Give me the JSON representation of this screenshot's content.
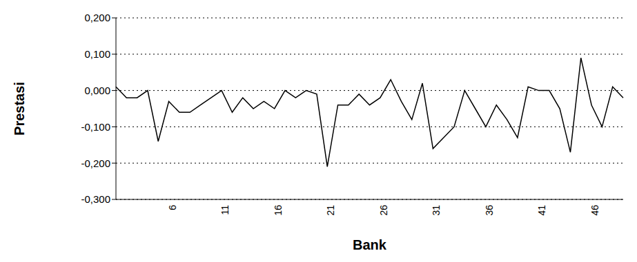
{
  "chart_data": {
    "type": "line",
    "x_label": "Bank",
    "y_label": "Prestasi",
    "categories": [
      null,
      null,
      null,
      null,
      null,
      "6",
      null,
      null,
      null,
      null,
      "11",
      null,
      null,
      null,
      null,
      "16",
      null,
      null,
      null,
      null,
      "21",
      null,
      null,
      null,
      null,
      "26",
      null,
      null,
      null,
      null,
      "31",
      null,
      null,
      null,
      null,
      "36",
      null,
      null,
      null,
      null,
      "41",
      null,
      null,
      null,
      null,
      "46",
      null,
      null,
      null
    ],
    "values": [
      0.01,
      -0.02,
      -0.02,
      0.0,
      -0.14,
      -0.03,
      -0.06,
      -0.06,
      -0.04,
      -0.02,
      0.0,
      -0.06,
      -0.02,
      -0.05,
      -0.03,
      -0.05,
      0.0,
      -0.02,
      0.0,
      -0.01,
      -0.21,
      -0.04,
      -0.04,
      -0.01,
      -0.04,
      -0.02,
      0.03,
      -0.03,
      -0.08,
      0.02,
      -0.16,
      -0.13,
      -0.1,
      0.0,
      -0.05,
      -0.1,
      -0.04,
      -0.08,
      -0.13,
      0.01,
      0.0,
      0.0,
      -0.05,
      -0.17,
      0.09,
      -0.04,
      -0.1,
      0.01,
      -0.02
    ],
    "color": "#000000",
    "ylim": [
      -0.3,
      0.2
    ],
    "yticks": [
      {
        "value": -0.3,
        "label": "-0,300"
      },
      {
        "value": -0.2,
        "label": "-0,200"
      },
      {
        "value": -0.1,
        "label": "-0,100"
      },
      {
        "value": 0,
        "label": "0,000"
      },
      {
        "value": 0.1,
        "label": "0,100"
      },
      {
        "value": 0.2,
        "label": "0,200"
      }
    ],
    "grid": true,
    "marker": "none",
    "line_style": "solid"
  }
}
